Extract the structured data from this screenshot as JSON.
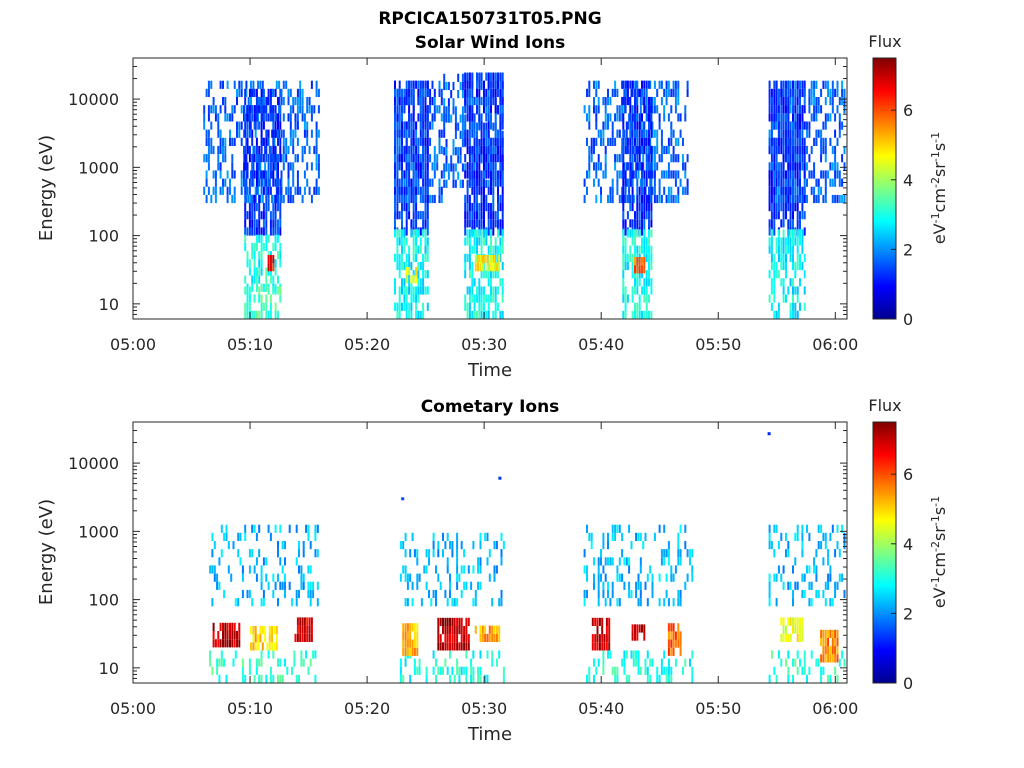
{
  "figure_title": "RPCICA150731T05.PNG",
  "colors": {
    "colormap": [
      "#00008f",
      "#0000ff",
      "#0080ff",
      "#00ffff",
      "#80ff80",
      "#ffff00",
      "#ff8000",
      "#ff0000",
      "#800000"
    ]
  },
  "chart_data": [
    {
      "type": "heatmap",
      "title": "Solar Wind Ions",
      "xlabel": "Time",
      "ylabel": "Energy (eV)",
      "x_tick_labels": [
        "05:00",
        "05:10",
        "05:20",
        "05:30",
        "05:40",
        "05:50",
        "06:00"
      ],
      "x_range_minutes": [
        0,
        61
      ],
      "y_scale": "log",
      "y_range": [
        6,
        40000
      ],
      "y_ticks": [
        10,
        100,
        1000,
        10000
      ],
      "y_tick_labels": [
        "10",
        "100",
        "1000",
        "10000"
      ],
      "colorbar": {
        "title": "Flux",
        "label": "eV-1cm-2sr-1s-1",
        "range": [
          0,
          7.5
        ],
        "ticks": [
          0,
          2,
          4,
          6
        ]
      },
      "blobs": [
        {
          "t": [
            6,
            15.8
          ],
          "e": [
            300,
            15000
          ],
          "level": 1.7,
          "density": 0.45
        },
        {
          "t": [
            9.5,
            12.5
          ],
          "e": [
            100,
            12000
          ],
          "level": 1.3,
          "density": 0.75
        },
        {
          "t": [
            9.5,
            12.5
          ],
          "e": [
            15,
            100
          ],
          "level": 3.0,
          "density": 0.6
        },
        {
          "t": [
            9.5,
            12.5
          ],
          "e": [
            6,
            15
          ],
          "level": 3.3,
          "density": 0.6
        },
        {
          "t": [
            11.5,
            12
          ],
          "e": [
            30,
            42
          ],
          "level": 6.6,
          "density": 1.0
        },
        {
          "t": [
            22.3,
            26.5
          ],
          "e": [
            300,
            15000
          ],
          "level": 1.6,
          "density": 0.5
        },
        {
          "t": [
            22.3,
            25.2
          ],
          "e": [
            100,
            15000
          ],
          "level": 1.3,
          "density": 0.8
        },
        {
          "t": [
            22.3,
            25.2
          ],
          "e": [
            6,
            100
          ],
          "level": 2.8,
          "density": 0.65
        },
        {
          "t": [
            23.3,
            24.2
          ],
          "e": [
            20,
            32
          ],
          "level": 4.6,
          "density": 0.7
        },
        {
          "t": [
            26.5,
            31.6
          ],
          "e": [
            500,
            20000
          ],
          "level": 1.7,
          "density": 0.5
        },
        {
          "t": [
            28.3,
            31.6
          ],
          "e": [
            100,
            20000
          ],
          "level": 1.3,
          "density": 0.8
        },
        {
          "t": [
            28.3,
            31.6
          ],
          "e": [
            6,
            100
          ],
          "level": 2.9,
          "density": 0.65
        },
        {
          "t": [
            29.2,
            31.2
          ],
          "e": [
            30,
            40
          ],
          "level": 4.7,
          "density": 0.9
        },
        {
          "t": [
            38.5,
            47.5
          ],
          "e": [
            300,
            15000
          ],
          "level": 1.7,
          "density": 0.45
        },
        {
          "t": [
            41.8,
            44.3
          ],
          "e": [
            100,
            15000
          ],
          "level": 1.3,
          "density": 0.8
        },
        {
          "t": [
            41.8,
            44.3
          ],
          "e": [
            6,
            100
          ],
          "level": 2.9,
          "density": 0.65
        },
        {
          "t": [
            42.8,
            43.8
          ],
          "e": [
            28,
            45
          ],
          "level": 5.8,
          "density": 1.0
        },
        {
          "t": [
            54.3,
            60.8
          ],
          "e": [
            300,
            15000
          ],
          "level": 1.7,
          "density": 0.45
        },
        {
          "t": [
            54.3,
            57.5
          ],
          "e": [
            100,
            15000
          ],
          "level": 1.3,
          "density": 0.8
        },
        {
          "t": [
            54.3,
            57.5
          ],
          "e": [
            6,
            100
          ],
          "level": 2.8,
          "density": 0.6
        }
      ]
    },
    {
      "type": "heatmap",
      "title": "Cometary Ions",
      "xlabel": "Time",
      "ylabel": "Energy (eV)",
      "x_tick_labels": [
        "05:00",
        "05:10",
        "05:20",
        "05:30",
        "05:40",
        "05:50",
        "06:00"
      ],
      "x_range_minutes": [
        0,
        61
      ],
      "y_scale": "log",
      "y_range": [
        6,
        40000
      ],
      "y_ticks": [
        10,
        100,
        1000,
        10000
      ],
      "y_tick_labels": [
        "10",
        "100",
        "1000",
        "10000"
      ],
      "colorbar": {
        "title": "Flux",
        "label": "eV-1cm-2sr-1s-1",
        "range": [
          0,
          7.5
        ],
        "ticks": [
          0,
          2,
          4,
          6
        ]
      },
      "blobs": [
        {
          "t": [
            6.5,
            15.8
          ],
          "e": [
            80,
            1200
          ],
          "level": 2.3,
          "density": 0.25
        },
        {
          "t": [
            6.5,
            15.8
          ],
          "e": [
            6,
            18
          ],
          "level": 3.2,
          "density": 0.3
        },
        {
          "t": [
            6.8,
            9
          ],
          "e": [
            20,
            45
          ],
          "level": 7.0,
          "density": 0.9
        },
        {
          "t": [
            10,
            12.2
          ],
          "e": [
            18,
            38
          ],
          "level": 5.0,
          "density": 0.8
        },
        {
          "t": [
            13.8,
            15.3
          ],
          "e": [
            24,
            42
          ],
          "level": 6.8,
          "density": 0.9
        },
        {
          "t": [
            22.8,
            31.6
          ],
          "e": [
            80,
            900
          ],
          "level": 2.3,
          "density": 0.25
        },
        {
          "t": [
            22.8,
            31.6
          ],
          "e": [
            6,
            18
          ],
          "level": 3.0,
          "density": 0.3
        },
        {
          "t": [
            23,
            24.3
          ],
          "e": [
            15,
            35
          ],
          "level": 5.2,
          "density": 0.8
        },
        {
          "t": [
            26,
            28.6
          ],
          "e": [
            18,
            45
          ],
          "level": 7.0,
          "density": 0.9
        },
        {
          "t": [
            29.2,
            31.2
          ],
          "e": [
            24,
            40
          ],
          "level": 5.4,
          "density": 0.8
        },
        {
          "t": [
            38.5,
            47.8
          ],
          "e": [
            80,
            1000
          ],
          "level": 2.3,
          "density": 0.25
        },
        {
          "t": [
            38.5,
            47.8
          ],
          "e": [
            6,
            18
          ],
          "level": 3.0,
          "density": 0.3
        },
        {
          "t": [
            39.2,
            40.8
          ],
          "e": [
            18,
            45
          ],
          "level": 7.0,
          "density": 0.9
        },
        {
          "t": [
            42.6,
            43.8
          ],
          "e": [
            25,
            42
          ],
          "level": 6.9,
          "density": 0.9
        },
        {
          "t": [
            45.7,
            46.8
          ],
          "e": [
            15,
            40
          ],
          "level": 5.8,
          "density": 0.85
        },
        {
          "t": [
            54.3,
            60.8
          ],
          "e": [
            80,
            1000
          ],
          "level": 2.3,
          "density": 0.25
        },
        {
          "t": [
            54.3,
            60.8
          ],
          "e": [
            6,
            18
          ],
          "level": 3.2,
          "density": 0.3
        },
        {
          "t": [
            55.3,
            57.3
          ],
          "e": [
            24,
            42
          ],
          "level": 4.6,
          "density": 0.8
        },
        {
          "t": [
            58.7,
            60.2
          ],
          "e": [
            12,
            28
          ],
          "level": 5.6,
          "density": 0.9
        }
      ],
      "points": [
        {
          "t": 23,
          "e": 3000,
          "level": 1.5
        },
        {
          "t": 31.3,
          "e": 6000,
          "level": 1.3
        },
        {
          "t": 54.3,
          "e": 27000,
          "level": 1.2
        }
      ]
    }
  ]
}
